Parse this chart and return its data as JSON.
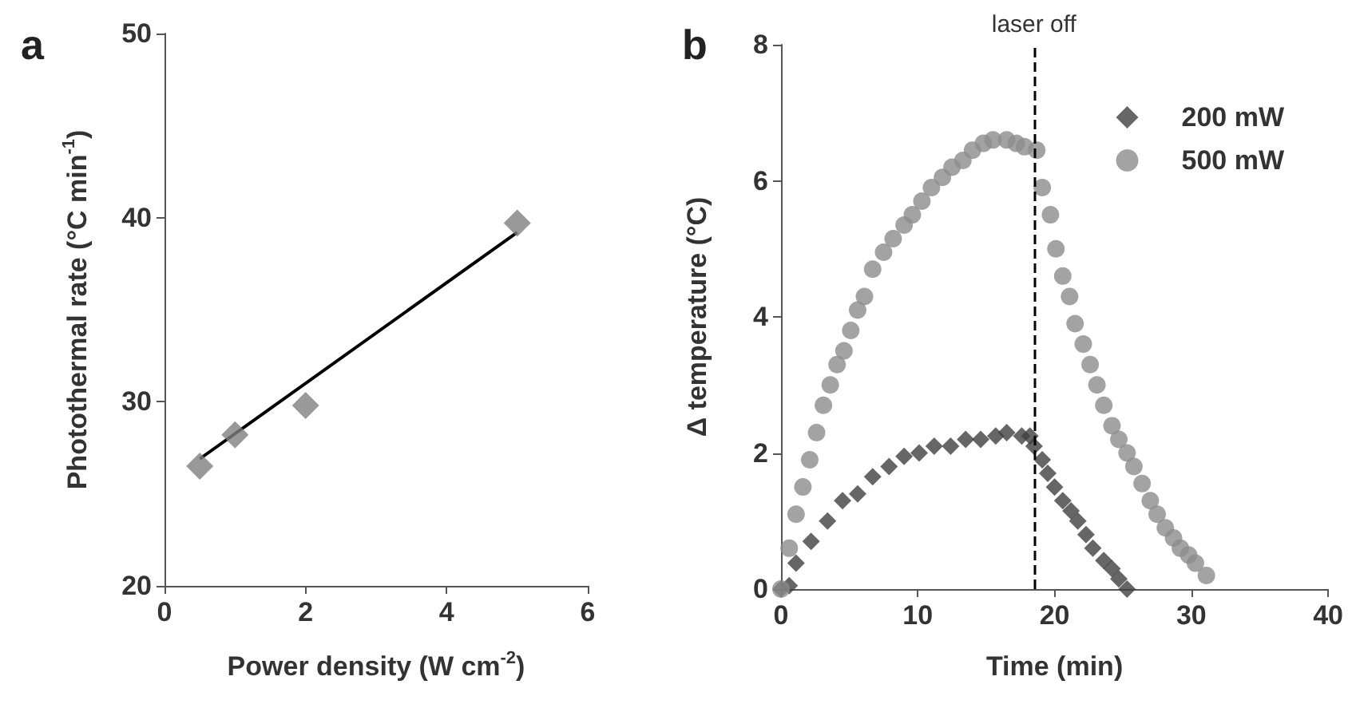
{
  "chart_data": [
    {
      "type": "scatter",
      "title": "a",
      "xlabel": "Power density (W cm$^{-2}$)",
      "ylabel": "Photothermal rate (°C min$^{-1}$)",
      "xlim": [
        0,
        6
      ],
      "xticks": [
        0,
        2,
        4,
        6
      ],
      "ylim": [
        20,
        50
      ],
      "yticks": [
        20,
        30,
        40,
        50
      ],
      "marker": "diamond",
      "series": [
        {
          "color": "#7f7f7f",
          "x": [
            0.5,
            1,
            2,
            5
          ],
          "values": [
            26.5,
            28.2,
            29.8,
            39.7
          ]
        },
        {
          "type": "line",
          "marker": "none",
          "color": "#000000",
          "x": [
            0.5,
            5
          ],
          "values": [
            26.9,
            39.2
          ]
        }
      ]
    },
    {
      "type": "scatter",
      "title": "b",
      "xlabel": "Time (min)",
      "ylabel": "Δ temperature (°C)",
      "xlim": [
        0,
        40
      ],
      "xticks": [
        0,
        10,
        20,
        30,
        40
      ],
      "ylim": [
        0,
        8
      ],
      "yticks": [
        0,
        2,
        4,
        6,
        8
      ],
      "legend": "top right",
      "ref_lines": [
        {
          "axis": "x",
          "value": 18.5,
          "label": "laser off",
          "line_style": "dashed",
          "color": "#000000"
        }
      ],
      "series": [
        {
          "name": "200 mW",
          "marker": "diamond",
          "color": "#404040",
          "x": [
            0,
            0.6,
            1.1,
            2.2,
            3.4,
            4.5,
            5.6,
            6.7,
            7.9,
            9,
            10.1,
            11.2,
            12.4,
            13.5,
            14.6,
            15.7,
            16.5,
            17.6,
            18.2,
            18.5,
            19.1,
            19.5,
            20,
            20.6,
            21.2,
            21.7,
            22.3,
            22.8,
            23.6,
            24.2,
            24.7,
            25.3
          ],
          "values": [
            0,
            0.05,
            0.38,
            0.7,
            1,
            1.3,
            1.4,
            1.65,
            1.8,
            1.95,
            2,
            2.1,
            2.1,
            2.2,
            2.2,
            2.25,
            2.3,
            2.25,
            2.25,
            2.1,
            1.9,
            1.7,
            1.5,
            1.3,
            1.15,
            1,
            0.8,
            0.6,
            0.42,
            0.3,
            0.15,
            0
          ]
        },
        {
          "name": "500 mW",
          "marker": "circle",
          "color": "#8c8c8c",
          "x": [
            0,
            0.6,
            1.1,
            1.6,
            2.1,
            2.6,
            3.1,
            3.6,
            4.1,
            4.6,
            5.1,
            5.6,
            6.1,
            6.7,
            7.5,
            8.2,
            9,
            9.6,
            10.3,
            11,
            11.8,
            12.5,
            13.3,
            14,
            14.8,
            15.5,
            16.5,
            17.2,
            17.8,
            18.7,
            19.1,
            19.7,
            20.1,
            20.6,
            21.1,
            21.5,
            22.1,
            22.6,
            23.1,
            23.6,
            24.2,
            24.7,
            25.3,
            25.8,
            26.4,
            27,
            27.5,
            28.1,
            28.7,
            29.2,
            29.8,
            30.3,
            31.1
          ],
          "values": [
            0,
            0.6,
            1.1,
            1.5,
            1.9,
            2.3,
            2.7,
            3,
            3.3,
            3.5,
            3.8,
            4.1,
            4.3,
            4.7,
            4.95,
            5.15,
            5.35,
            5.5,
            5.7,
            5.9,
            6.05,
            6.2,
            6.3,
            6.45,
            6.55,
            6.6,
            6.6,
            6.55,
            6.5,
            6.45,
            5.9,
            5.5,
            5,
            4.6,
            4.3,
            3.9,
            3.6,
            3.3,
            3,
            2.7,
            2.4,
            2.2,
            2,
            1.8,
            1.55,
            1.3,
            1.1,
            0.9,
            0.75,
            0.6,
            0.5,
            0.38,
            0.2
          ]
        }
      ]
    }
  ]
}
